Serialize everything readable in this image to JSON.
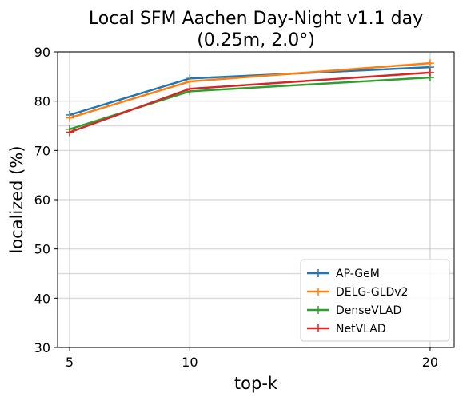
{
  "chart_data": {
    "type": "line",
    "title_line1": "Local SFM Aachen Day-Night v1.1 day",
    "title_line2": "(0.25m, 2.0°)",
    "xlabel": "top-k",
    "ylabel": "localized (%)",
    "x": [
      5,
      10,
      20
    ],
    "xlim": [
      4.5,
      21
    ],
    "ylim": [
      30,
      90
    ],
    "yticks": [
      30,
      40,
      50,
      60,
      70,
      80,
      90
    ],
    "xticks": [
      5,
      10,
      20
    ],
    "extra_hlines": [
      75,
      45
    ],
    "grid": true,
    "legend_position": "lower-right",
    "series": [
      {
        "name": "AP-GeM",
        "color": "#1f77b4",
        "values": [
          77.2,
          84.6,
          86.9
        ]
      },
      {
        "name": "DELG-GLDv2",
        "color": "#ff7f0e",
        "values": [
          76.6,
          84.0,
          87.7
        ]
      },
      {
        "name": "DenseVLAD",
        "color": "#2ca02c",
        "values": [
          74.3,
          82.0,
          84.8
        ]
      },
      {
        "name": "NetVLAD",
        "color": "#d62728",
        "values": [
          73.7,
          82.5,
          85.8
        ]
      }
    ]
  }
}
